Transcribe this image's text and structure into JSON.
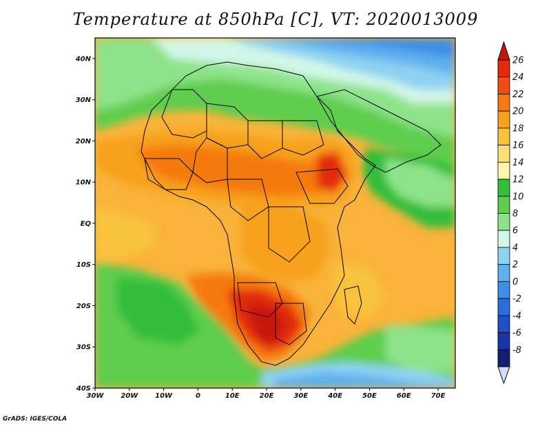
{
  "title": "Temperature at 850hPa [C], VT: 2020013009",
  "credit": "GrADS: IGES/COLA",
  "map": {
    "lon_range": [
      -30,
      75
    ],
    "lat_range": [
      -40,
      45
    ],
    "lat_ticks": [
      "40N",
      "30N",
      "20N",
      "10N",
      "EQ",
      "10S",
      "20S",
      "30S",
      "40S"
    ],
    "lon_ticks": [
      "30W",
      "20W",
      "10W",
      "0",
      "10E",
      "20E",
      "30E",
      "40E",
      "50E",
      "60E",
      "70E"
    ]
  },
  "colorbar": {
    "labels": [
      "26",
      "24",
      "22",
      "20",
      "18",
      "16",
      "14",
      "12",
      "10",
      "8",
      "6",
      "4",
      "2",
      "0",
      "-2",
      "-4",
      "-6",
      "-8"
    ],
    "colors_top_to_bottom": [
      "#e2290e",
      "#f04e0e",
      "#f57a0f",
      "#f7a11c",
      "#f9c23c",
      "#fbe07a",
      "#fef6b0",
      "#33be3b",
      "#5ecd4e",
      "#8ee38a",
      "#d2f7e8",
      "#8ed2f2",
      "#5fb0ee",
      "#3d8ee6",
      "#2a6ddd",
      "#1f4ec7",
      "#1a35a5",
      "#14206e"
    ],
    "top_arrow_color": "#c8140a",
    "bottom_arrow_color": "#d6dcff"
  }
}
